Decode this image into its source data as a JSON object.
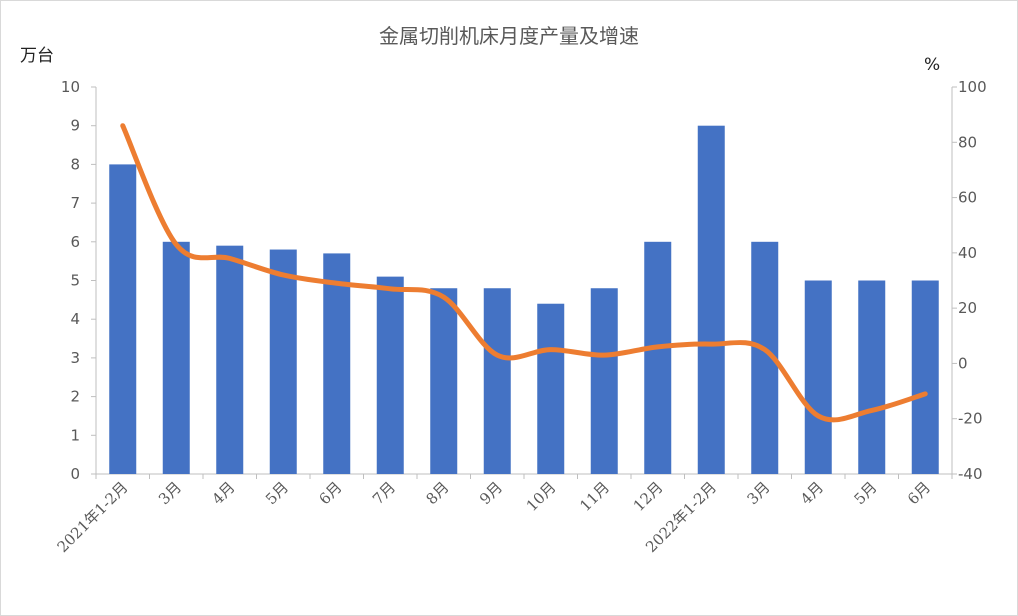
{
  "chart_data": {
    "type": "bar+line",
    "title": "金属切削机床月度产量及增速",
    "categories": [
      "2021年1-2月",
      "3月",
      "4月",
      "5月",
      "6月",
      "7月",
      "8月",
      "9月",
      "10月",
      "11月",
      "12月",
      "2022年1-2月",
      "3月",
      "4月",
      "5月",
      "6月"
    ],
    "series": [
      {
        "type": "bar",
        "axis": "left",
        "color": "#4472C4",
        "values": [
          8.0,
          6.0,
          5.9,
          5.8,
          5.7,
          5.1,
          4.8,
          4.8,
          4.4,
          4.8,
          6.0,
          9.0,
          6.0,
          5.0,
          5.0,
          5.0
        ]
      },
      {
        "type": "line",
        "axis": "right",
        "color": "#ED7D31",
        "values": [
          86,
          43,
          38,
          32,
          29,
          27,
          24,
          3,
          5,
          3,
          6,
          7,
          5,
          -19,
          -17,
          -11
        ]
      }
    ],
    "y_left": {
      "unit": "万台",
      "min": 0,
      "max": 10,
      "ticks": [
        "0",
        "1",
        "2",
        "3",
        "4",
        "5",
        "6",
        "7",
        "8",
        "9",
        "10"
      ]
    },
    "y_right": {
      "unit": "%",
      "min": -40,
      "max": 100,
      "ticks": [
        "-40",
        "-20",
        "0",
        "20",
        "40",
        "60",
        "80",
        "100"
      ]
    },
    "grid": false,
    "legend": "none"
  }
}
